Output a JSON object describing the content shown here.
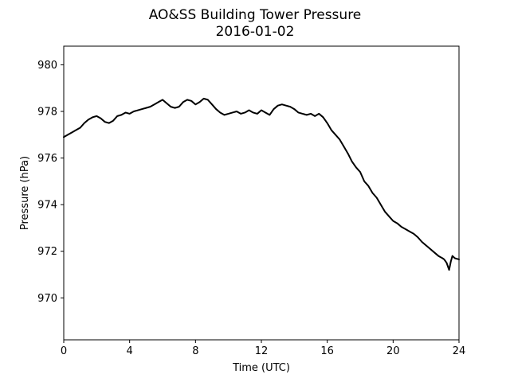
{
  "chart_data": {
    "type": "line",
    "title": "AO&SS Building Tower Pressure",
    "subtitle": "2016-01-02",
    "xlabel": "Time (UTC)",
    "ylabel": "Pressure (hPa)",
    "xlim": [
      0,
      24
    ],
    "ylim": [
      968.2,
      980.8
    ],
    "xticks": [
      0,
      4,
      8,
      12,
      16,
      20,
      24
    ],
    "yticks": [
      970,
      972,
      974,
      976,
      978,
      980
    ],
    "grid": false,
    "legend": "none",
    "line_color": "#000000",
    "series": [
      {
        "x": [
          0,
          0.25,
          0.5,
          0.75,
          1.0,
          1.25,
          1.5,
          1.75,
          2.0,
          2.25,
          2.5,
          2.75,
          3.0,
          3.25,
          3.5,
          3.75,
          4.0,
          4.25,
          4.5,
          4.75,
          5.0,
          5.25,
          5.5,
          5.75,
          6.0,
          6.25,
          6.5,
          6.75,
          7.0,
          7.25,
          7.5,
          7.75,
          8.0,
          8.25,
          8.5,
          8.75,
          9.0,
          9.25,
          9.5,
          9.75,
          10.0,
          10.25,
          10.5,
          10.75,
          11.0,
          11.25,
          11.5,
          11.75,
          12.0,
          12.25,
          12.5,
          12.75,
          13.0,
          13.25,
          13.5,
          13.75,
          14.0,
          14.25,
          14.5,
          14.75,
          15.0,
          15.25,
          15.5,
          15.75,
          16.0,
          16.25,
          16.5,
          16.75,
          17.0,
          17.25,
          17.5,
          17.75,
          18.0,
          18.25,
          18.5,
          18.75,
          19.0,
          19.25,
          19.5,
          19.75,
          20.0,
          20.25,
          20.5,
          20.75,
          21.0,
          21.25,
          21.5,
          21.75,
          22.0,
          22.25,
          22.5,
          22.75,
          23.0,
          23.1,
          23.25,
          23.4,
          23.5,
          23.6,
          23.75,
          24.0
        ],
        "y": [
          976.9,
          977.0,
          977.1,
          977.2,
          977.3,
          977.5,
          977.65,
          977.75,
          977.8,
          977.7,
          977.55,
          977.5,
          977.6,
          977.8,
          977.85,
          977.95,
          977.9,
          978.0,
          978.05,
          978.1,
          978.15,
          978.2,
          978.3,
          978.4,
          978.5,
          978.35,
          978.2,
          978.15,
          978.2,
          978.4,
          978.5,
          978.45,
          978.3,
          978.4,
          978.55,
          978.5,
          978.3,
          978.1,
          977.95,
          977.85,
          977.9,
          977.95,
          978.0,
          977.9,
          977.95,
          978.05,
          977.95,
          977.9,
          978.05,
          977.95,
          977.85,
          978.1,
          978.25,
          978.3,
          978.25,
          978.2,
          978.1,
          977.95,
          977.9,
          977.85,
          977.9,
          977.8,
          977.9,
          977.75,
          977.5,
          977.2,
          977.0,
          976.8,
          976.5,
          976.2,
          975.85,
          975.6,
          975.4,
          975.0,
          974.8,
          974.5,
          974.3,
          974.0,
          973.7,
          973.5,
          973.3,
          973.2,
          973.05,
          972.95,
          972.85,
          972.75,
          972.6,
          972.4,
          972.25,
          972.1,
          971.95,
          971.8,
          971.7,
          971.65,
          971.5,
          971.2,
          971.55,
          971.8,
          971.7,
          971.65
        ]
      }
    ]
  }
}
